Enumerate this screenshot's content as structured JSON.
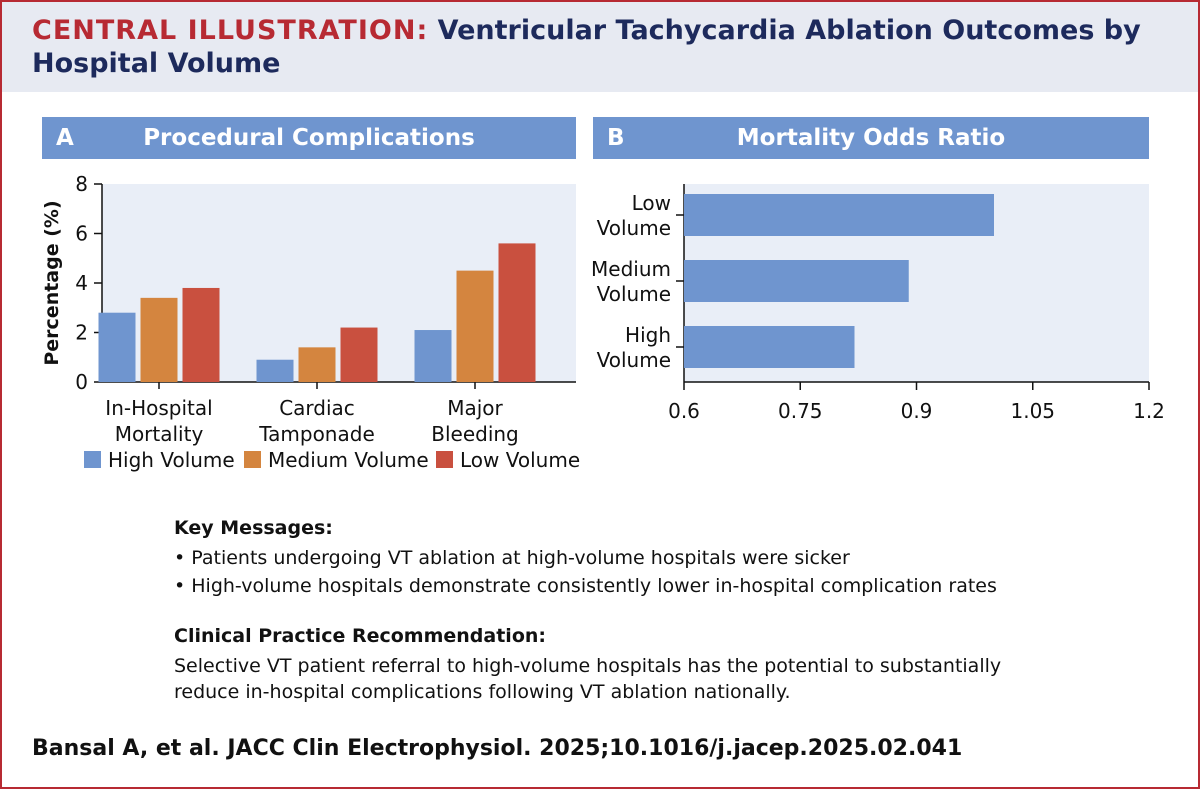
{
  "header": {
    "title_prefix": "CENTRAL ILLUSTRATION:",
    "title_rest": "Ventricular Tachycardia Ablation Outcomes by Hospital Volume"
  },
  "panel_a": {
    "letter": "A",
    "title": "Procedural Complications"
  },
  "panel_b": {
    "letter": "B",
    "title": "Mortality Odds Ratio"
  },
  "colors": {
    "high": "#6f95cf",
    "medium": "#d4853f",
    "low": "#c9503f",
    "plot_bg": "#e9eef7"
  },
  "chart_data": [
    {
      "type": "bar",
      "title": "Procedural Complications",
      "ylabel": "Percentage (%)",
      "xlabel": "",
      "ylim": [
        0,
        8
      ],
      "yticks": [
        "0",
        "2",
        "4",
        "6",
        "8"
      ],
      "categories": [
        [
          "In-Hospital",
          "Mortality"
        ],
        [
          "Cardiac",
          "Tamponade"
        ],
        [
          "Major",
          "Bleeding"
        ]
      ],
      "series": [
        {
          "name": "High Volume",
          "values": [
            2.8,
            0.9,
            2.1
          ]
        },
        {
          "name": "Medium Volume",
          "values": [
            3.4,
            1.4,
            4.5
          ]
        },
        {
          "name": "Low Volume",
          "values": [
            3.8,
            2.2,
            5.6
          ]
        }
      ],
      "legend": "bottom"
    },
    {
      "type": "bar",
      "orientation": "horizontal",
      "title": "Mortality Odds Ratio",
      "xlim": [
        0.6,
        1.2
      ],
      "xticks": [
        "0.6",
        "0.75",
        "0.9",
        "1.05",
        "1.2"
      ],
      "categories": [
        [
          "Low",
          "Volume"
        ],
        [
          "Medium",
          "Volume"
        ],
        [
          "High",
          "Volume"
        ]
      ],
      "values": [
        1.0,
        0.89,
        0.82
      ]
    }
  ],
  "key_messages": {
    "heading": "Key Messages:",
    "items": [
      "• Patients undergoing VT ablation at high-volume hospitals were sicker",
      "• High-volume hospitals demonstrate consistently lower in-hospital complication rates"
    ]
  },
  "recommendation": {
    "heading": "Clinical Practice Recommendation:",
    "lines": [
      "Selective VT patient referral to high-volume hospitals has the potential to substantially",
      "reduce in-hospital complications following VT ablation nationally."
    ]
  },
  "citation": "Bansal A, et al. JACC Clin Electrophysiol. 2025;10.1016/j.jacep.2025.02.041"
}
